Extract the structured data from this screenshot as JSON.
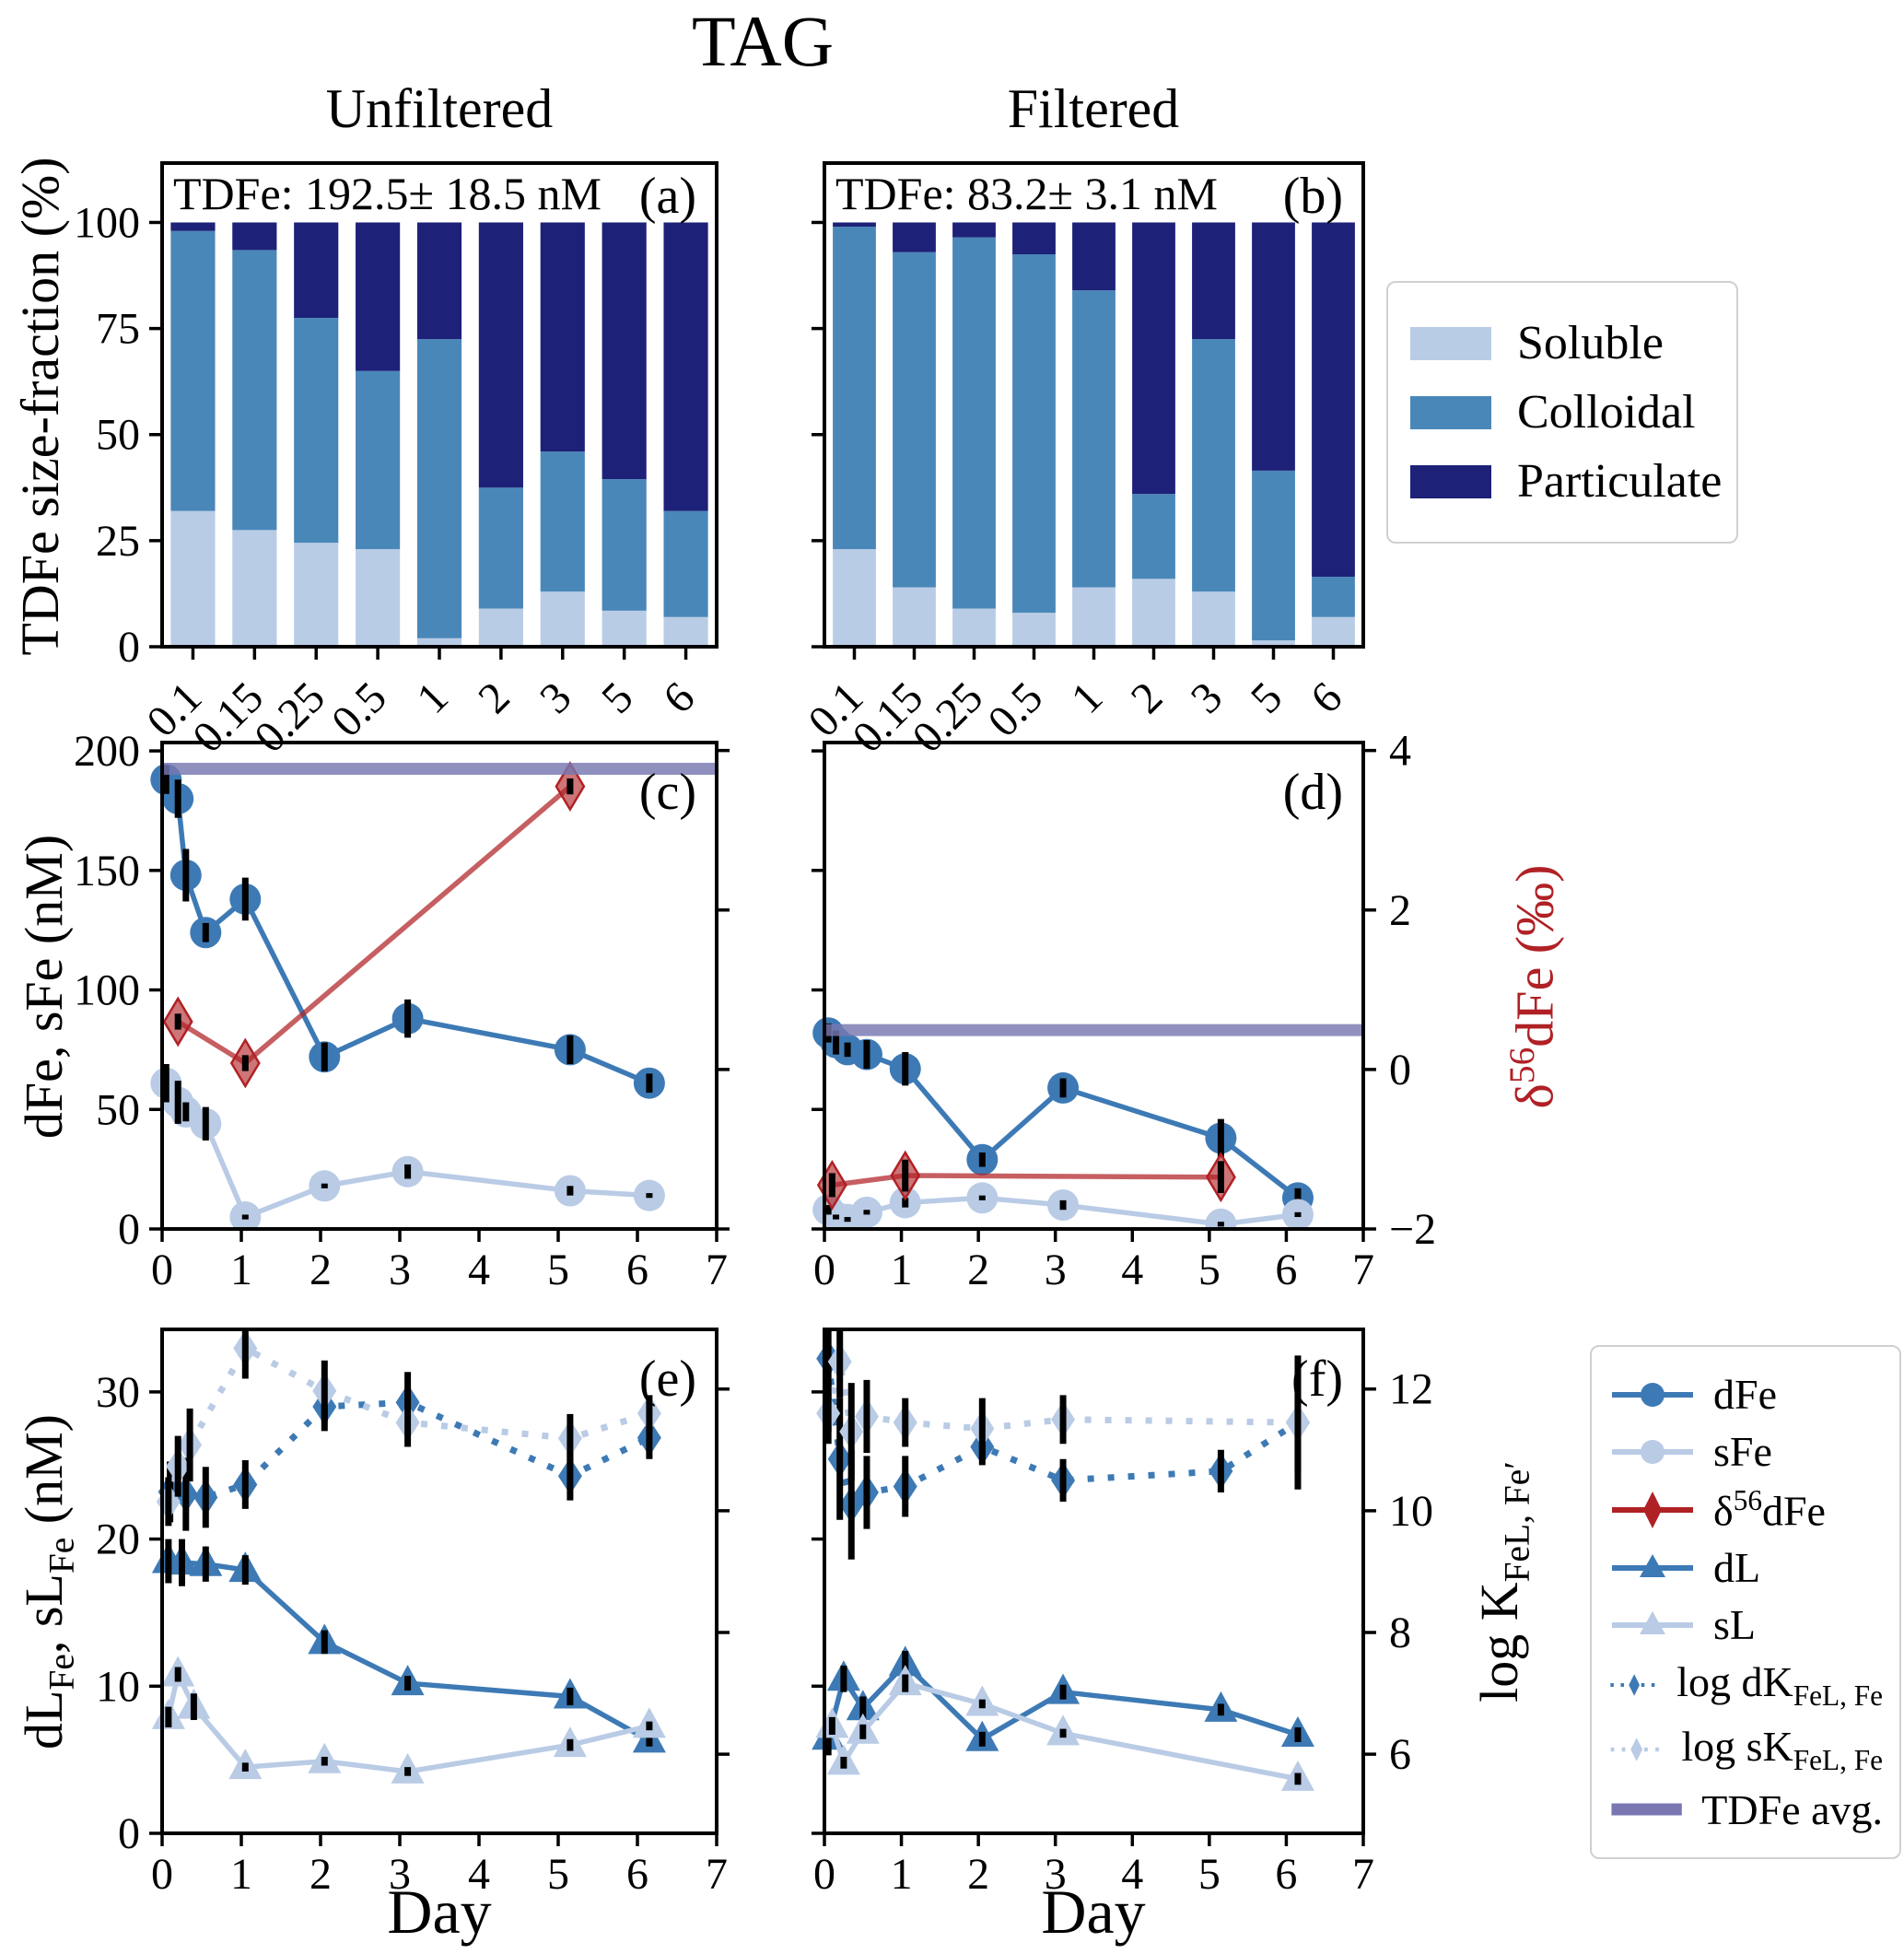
{
  "title": "TAG",
  "column_headers": {
    "left": "Unfiltered",
    "right": "Filtered"
  },
  "colors": {
    "soluble": "#b9cce6",
    "colloidal": "#4a87b9",
    "particulate": "#1d2178",
    "dFe": "#3d7ab5",
    "sFe": "#b9cbe5",
    "delta": "#b02125",
    "tdfe_avg": "#7877b1",
    "error": "#000000"
  },
  "labels": {
    "size_fraction_ylabel": "TDFe size-fraction (%)",
    "dfe_sfe_ylabel": "dFe, sFe (nM)",
    "dl_sl_ylabel": {
      "p1": "dL",
      "s1": "Fe",
      "p2": ", sL",
      "s2": "Fe",
      "p3": " (nM)"
    },
    "delta_ylabel": {
      "p1": "δ",
      "sup": "56",
      "p2": "dFe (‰)"
    },
    "logk_ylabel": {
      "p1": "log K",
      "s1": "FeL, Fe′"
    },
    "xlabel_day": "Day"
  },
  "legend_fractions": [
    {
      "label": "Soluble",
      "color": "soluble"
    },
    {
      "label": "Colloidal",
      "color": "colloidal"
    },
    {
      "label": "Particulate",
      "color": "particulate"
    }
  ],
  "legend_series": [
    {
      "id": "dFe",
      "label": "dFe",
      "marker": "circle",
      "style": "solid",
      "color": "dFe"
    },
    {
      "id": "sFe",
      "label": "sFe",
      "marker": "circle",
      "style": "solid",
      "color": "sFe"
    },
    {
      "id": "delta56dFe",
      "label": {
        "p1": "δ",
        "sup": "56",
        "p2": "dFe"
      },
      "marker": "diamond",
      "style": "solid",
      "color": "delta"
    },
    {
      "id": "dL",
      "label": "dL",
      "marker": "triangle",
      "style": "solid",
      "color": "dFe"
    },
    {
      "id": "sL",
      "label": "sL",
      "marker": "triangle",
      "style": "solid",
      "color": "sFe"
    },
    {
      "id": "log-dK",
      "label": {
        "p1": "log dK",
        "s1": "FeL, Fe"
      },
      "marker": "diamond",
      "style": "dotted",
      "color": "dFe"
    },
    {
      "id": "log-sK",
      "label": {
        "p1": "log sK",
        "s1": "FeL, Fe"
      },
      "marker": "diamond",
      "style": "dotted",
      "color": "sFe"
    },
    {
      "id": "tdfe-avg",
      "label": "TDFe avg.",
      "marker": "none",
      "style": "thick",
      "color": "tdfe_avg"
    }
  ],
  "chart_data": [
    {
      "id": "a",
      "type": "bar",
      "letter": "(a)",
      "annotation": "TDFe: 192.5± 18.5 nM",
      "categories": [
        "0.1",
        "0.15",
        "0.25",
        "0.5",
        "1",
        "2",
        "3",
        "5",
        "6"
      ],
      "ylim": [
        0,
        114
      ],
      "yticks": [
        0,
        25,
        50,
        75,
        100
      ],
      "ytick_labels": true,
      "series": [
        {
          "name": "Soluble",
          "color": "soluble",
          "values": [
            32,
            27.5,
            24.5,
            23,
            2,
            9,
            13,
            8.5,
            7
          ]
        },
        {
          "name": "Colloidal",
          "color": "colloidal",
          "values": [
            66,
            66,
            53,
            42,
            70.5,
            28.5,
            33,
            31,
            25
          ]
        },
        {
          "name": "Particulate",
          "color": "particulate",
          "values": [
            2,
            6.5,
            22.5,
            35,
            27.5,
            62.5,
            54,
            60.5,
            68
          ]
        }
      ]
    },
    {
      "id": "b",
      "type": "bar",
      "letter": "(b)",
      "annotation": "TDFe: 83.2± 3.1 nM",
      "categories": [
        "0.1",
        "0.15",
        "0.25",
        "0.5",
        "1",
        "2",
        "3",
        "5",
        "6"
      ],
      "ylim": [
        0,
        114
      ],
      "yticks": [
        0,
        25,
        50,
        75,
        100
      ],
      "ytick_labels": false,
      "series": [
        {
          "name": "Soluble",
          "color": "soluble",
          "values": [
            23,
            14,
            9,
            8,
            14,
            16,
            13,
            1.5,
            7
          ]
        },
        {
          "name": "Colloidal",
          "color": "colloidal",
          "values": [
            76,
            79,
            87.5,
            84.5,
            70,
            20,
            59.5,
            40,
            9.5
          ]
        },
        {
          "name": "Particulate",
          "color": "particulate",
          "values": [
            1,
            7,
            3.5,
            7.5,
            16,
            64,
            27.5,
            58.5,
            83.5
          ]
        }
      ]
    },
    {
      "id": "c",
      "type": "line",
      "letter": "(c)",
      "xlim": [
        0,
        7
      ],
      "xticks": [
        0,
        1,
        2,
        3,
        4,
        5,
        6,
        7
      ],
      "ylim_left": [
        0,
        203.5
      ],
      "yticks_left": [
        0,
        50,
        100,
        150,
        200
      ],
      "ytick_labels_left": true,
      "ylim_right": [
        -2,
        4.1
      ],
      "yticks_right": [
        -2,
        0,
        2,
        4
      ],
      "ytick_labels_right": false,
      "tdfe_avg": 192.5,
      "series": [
        {
          "name": "dFe",
          "axis": "left",
          "marker": "circle",
          "linestyle": "solid",
          "color": "dFe",
          "x": [
            0.05,
            0.2,
            0.3,
            0.55,
            1.05,
            2.05,
            3.1,
            5.15,
            6.15
          ],
          "y": [
            188,
            180,
            148,
            124,
            138,
            72,
            88,
            75,
            61
          ],
          "err": [
            6,
            8,
            11,
            4,
            9,
            6,
            8,
            6,
            4
          ]
        },
        {
          "name": "sFe",
          "axis": "left",
          "marker": "circle",
          "linestyle": "solid",
          "color": "sFe",
          "x": [
            0.05,
            0.2,
            0.3,
            0.55,
            1.05,
            2.05,
            3.1,
            5.15,
            6.15
          ],
          "y": [
            61,
            53,
            49,
            44,
            5,
            18,
            24,
            16,
            14
          ],
          "err": [
            8,
            9,
            4,
            7,
            1,
            1,
            3,
            2,
            1
          ]
        },
        {
          "name": "delta56dFe",
          "axis": "right",
          "marker": "diamond-lg",
          "linestyle": "solid",
          "color": "delta",
          "x": [
            0.2,
            1.05,
            5.15
          ],
          "y": [
            0.6,
            0.08,
            3.55
          ],
          "err": [
            0.1,
            0.1,
            0.1
          ]
        }
      ]
    },
    {
      "id": "d",
      "type": "line",
      "letter": "(d)",
      "xlim": [
        0,
        7
      ],
      "xticks": [
        0,
        1,
        2,
        3,
        4,
        5,
        6,
        7
      ],
      "ylim_left": [
        0,
        203.5
      ],
      "yticks_left": [
        0,
        50,
        100,
        150,
        200
      ],
      "ytick_labels_left": false,
      "ylim_right": [
        -2,
        4.1
      ],
      "yticks_right": [
        -2,
        0,
        2,
        4
      ],
      "ytick_labels_right": true,
      "tdfe_avg": 83.2,
      "series": [
        {
          "name": "dFe",
          "axis": "left",
          "marker": "circle",
          "linestyle": "solid",
          "color": "dFe",
          "x": [
            0.05,
            0.15,
            0.3,
            0.55,
            1.05,
            2.05,
            3.1,
            5.15,
            6.15
          ],
          "y": [
            82,
            78,
            75,
            73,
            67,
            29,
            59,
            38,
            13
          ],
          "err": [
            4,
            5,
            3,
            6,
            7,
            3,
            4,
            8,
            4
          ]
        },
        {
          "name": "sFe",
          "axis": "left",
          "marker": "circle",
          "linestyle": "solid",
          "color": "sFe",
          "x": [
            0.05,
            0.15,
            0.3,
            0.55,
            1.05,
            2.05,
            3.1,
            5.15,
            6.15
          ],
          "y": [
            8,
            5,
            4,
            7,
            11,
            13,
            10,
            2,
            6
          ],
          "err": [
            2,
            1,
            1,
            1,
            2,
            1,
            2,
            1,
            1
          ]
        },
        {
          "name": "delta56dFe",
          "axis": "right",
          "marker": "diamond-lg",
          "linestyle": "solid",
          "color": "delta",
          "x": [
            0.1,
            1.05,
            5.15
          ],
          "y": [
            -1.45,
            -1.33,
            -1.35
          ],
          "err": [
            0.15,
            0.2,
            0.2
          ]
        }
      ]
    },
    {
      "id": "e",
      "type": "line",
      "letter": "(e)",
      "xlim": [
        0,
        7
      ],
      "xticks": [
        0,
        1,
        2,
        3,
        4,
        5,
        6,
        7
      ],
      "ylim_left": [
        0,
        34.25
      ],
      "yticks_left": [
        0,
        10,
        20,
        30
      ],
      "ytick_labels_left": true,
      "ylim_right": [
        4.7,
        12.98
      ],
      "yticks_right": [
        6,
        8,
        10,
        12
      ],
      "ytick_labels_right": false,
      "series": [
        {
          "name": "dL",
          "axis": "left",
          "marker": "triangle",
          "linestyle": "solid",
          "color": "dFe",
          "x": [
            0.08,
            0.25,
            0.55,
            1.05,
            2.05,
            3.1,
            5.15,
            6.15
          ],
          "y": [
            18.5,
            18.4,
            18.3,
            17.9,
            13.0,
            10.2,
            9.3,
            6.3
          ],
          "err": [
            1.5,
            1.6,
            1.2,
            1.0,
            0.8,
            0.5,
            0.6,
            0.4
          ]
        },
        {
          "name": "sL",
          "axis": "left",
          "marker": "triangle",
          "linestyle": "solid",
          "color": "sFe",
          "x": [
            0.08,
            0.2,
            0.4,
            1.05,
            2.05,
            3.1,
            5.15,
            6.15
          ],
          "y": [
            7.9,
            10.8,
            8.6,
            4.5,
            4.9,
            4.2,
            6.0,
            7.3
          ],
          "err": [
            0.7,
            0.5,
            0.9,
            0.3,
            0.3,
            0.3,
            0.4,
            0.3
          ]
        },
        {
          "name": "log-dK",
          "axis": "right",
          "marker": "diamond",
          "linestyle": "dotted",
          "color": "dFe",
          "x": [
            0.1,
            0.3,
            0.55,
            1.05,
            2.05,
            3.1,
            5.15,
            6.15
          ],
          "y": [
            10.31,
            10.27,
            10.22,
            10.43,
            11.71,
            11.78,
            10.57,
            11.2
          ],
          "err": [
            0.5,
            0.6,
            0.5,
            0.4,
            0.4,
            0.5,
            0.4,
            0.35
          ]
        },
        {
          "name": "log-sK",
          "axis": "right",
          "marker": "diamond",
          "linestyle": "dotted",
          "color": "sFe",
          "x": [
            0.08,
            0.2,
            0.35,
            1.05,
            2.05,
            3.1,
            5.15,
            6.15
          ],
          "y": [
            10.15,
            10.73,
            11.08,
            12.67,
            11.97,
            11.45,
            11.19,
            11.6
          ],
          "err": [
            0.4,
            0.5,
            0.6,
            0.5,
            0.5,
            0.4,
            0.4,
            0.3
          ]
        }
      ]
    },
    {
      "id": "f",
      "type": "line",
      "letter": "(f)",
      "xlim": [
        0,
        7
      ],
      "xticks": [
        0,
        1,
        2,
        3,
        4,
        5,
        6,
        7
      ],
      "ylim_left": [
        0,
        34.25
      ],
      "yticks_left": [
        0,
        10,
        20,
        30
      ],
      "ytick_labels_left": false,
      "ylim_right": [
        4.7,
        12.98
      ],
      "yticks_right": [
        6,
        8,
        10,
        12
      ],
      "ytick_labels_right": true,
      "series": [
        {
          "name": "dL",
          "axis": "left",
          "marker": "triangle",
          "linestyle": "solid",
          "color": "dFe",
          "x": [
            0.05,
            0.25,
            0.5,
            1.05,
            2.05,
            3.1,
            5.15,
            6.15
          ],
          "y": [
            6.5,
            10.5,
            8.5,
            11.5,
            6.4,
            9.6,
            8.4,
            6.7
          ],
          "err": [
            1.2,
            0.9,
            0.8,
            0.9,
            0.5,
            0.5,
            0.4,
            0.5
          ]
        },
        {
          "name": "sL",
          "axis": "left",
          "marker": "triangle",
          "linestyle": "solid",
          "color": "sFe",
          "x": [
            0.1,
            0.25,
            0.5,
            1.05,
            2.05,
            3.1,
            6.15
          ],
          "y": [
            7.3,
            4.8,
            6.9,
            10.2,
            8.8,
            6.8,
            3.7
          ],
          "err": [
            0.6,
            0.4,
            0.5,
            0.6,
            0.3,
            0.3,
            0.4
          ]
        },
        {
          "name": "log-dK",
          "axis": "right",
          "marker": "diamond",
          "linestyle": "dotted",
          "color": "dFe",
          "x": [
            0.05,
            0.2,
            0.35,
            0.55,
            1.05,
            2.05,
            3.1,
            5.15,
            6.15
          ],
          "y": [
            12.5,
            10.85,
            10.1,
            10.3,
            10.4,
            11.05,
            10.5,
            10.65,
            11.45
          ],
          "err": [
            1.2,
            1.0,
            0.9,
            0.6,
            0.5,
            0.3,
            0.35,
            0.35,
            1.1
          ]
        },
        {
          "name": "log-sK",
          "axis": "right",
          "marker": "diamond",
          "linestyle": "dotted",
          "color": "sFe",
          "x": [
            0.05,
            0.2,
            0.35,
            0.55,
            1.05,
            2.05,
            3.1,
            6.15
          ],
          "y": [
            11.6,
            12.45,
            11.3,
            11.55,
            11.45,
            11.35,
            11.5,
            11.45
          ],
          "err": [
            0.5,
            0.6,
            0.8,
            0.6,
            0.4,
            0.5,
            0.4,
            0.8
          ]
        }
      ]
    }
  ]
}
